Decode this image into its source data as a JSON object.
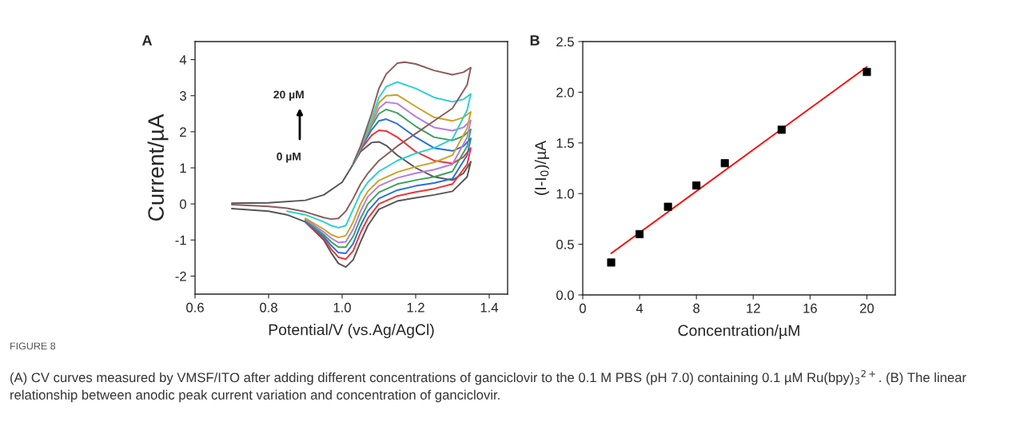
{
  "chart_data": [
    {
      "type": "line",
      "xlabel": "Potential/V (vs.Ag/AgCl)",
      "ylabel": "Current/µA",
      "xlim": [
        0.6,
        1.45
      ],
      "ylim": [
        -2.5,
        4.5
      ],
      "xticks": [
        {
          "value": 0.6,
          "label": "0.6"
        },
        {
          "value": 0.8,
          "label": "0.8"
        },
        {
          "value": 1.0,
          "label": "1.0"
        },
        {
          "value": 1.2,
          "label": "1.2"
        },
        {
          "value": 1.4,
          "label": "1.4"
        }
      ],
      "yticks": [
        {
          "value": -2,
          "label": "-2"
        },
        {
          "value": -1,
          "label": "-1"
        },
        0,
        1,
        2,
        3,
        4
      ],
      "grid": false,
      "marker": "none",
      "line_style": "solid",
      "annotations": [
        "A",
        "20 µM",
        "0 µM",
        "FIGURE 8",
        "(A) CV curves measured by VMSF/ITO after adding different concentrations of ganciclovir to the 0.1 M PBS (pH 7.0) containing 0.1 µM Ru(bpy)$_{3}$$^{2+}$. (B) The linear relationship between anodic peak current variation and concentration of ganciclovir."
      ],
      "series": [
        {
          "color": "#555555",
          "x": [
            0.7,
            0.8,
            0.9,
            0.95,
            1.0,
            1.03,
            1.05,
            1.08,
            1.1,
            1.12,
            1.15,
            1.2,
            1.25,
            1.3,
            1.33,
            1.35,
            1.34,
            1.3,
            1.25,
            1.2,
            1.15,
            1.1,
            1.07,
            1.05,
            1.03,
            1.01,
            0.99,
            0.97,
            0.95,
            0.9,
            0.85,
            0.8,
            0.7
          ],
          "values": [
            0.02,
            0.03,
            0.1,
            0.25,
            0.6,
            1.1,
            1.45,
            1.7,
            1.72,
            1.62,
            1.35,
            1.0,
            0.75,
            0.66,
            0.85,
            1.17,
            0.75,
            0.35,
            0.25,
            0.17,
            0.08,
            -0.15,
            -0.6,
            -1.05,
            -1.55,
            -1.75,
            -1.65,
            -1.35,
            -1.0,
            -0.5,
            -0.3,
            -0.2,
            -0.13
          ]
        },
        {
          "color": "#ee3333",
          "x": [
            1.03,
            1.05,
            1.08,
            1.1,
            1.12,
            1.15,
            1.2,
            1.25,
            1.3,
            1.33,
            1.35,
            1.34,
            1.3,
            1.25,
            1.2,
            1.15,
            1.1,
            1.07,
            1.05,
            1.03,
            1.01,
            0.99,
            0.97,
            0.95,
            0.9
          ],
          "values": [
            1.1,
            1.5,
            1.9,
            2.04,
            2.02,
            1.85,
            1.45,
            1.2,
            1.12,
            1.3,
            1.55,
            1.1,
            0.55,
            0.42,
            0.33,
            0.22,
            0.0,
            -0.4,
            -0.8,
            -1.3,
            -1.53,
            -1.48,
            -1.25,
            -0.95,
            -0.5
          ]
        },
        {
          "color": "#2a6fdb",
          "x": [
            1.03,
            1.05,
            1.08,
            1.1,
            1.12,
            1.15,
            1.2,
            1.25,
            1.3,
            1.33,
            1.35,
            1.34,
            1.3,
            1.25,
            1.2,
            1.15,
            1.1,
            1.07,
            1.05,
            1.03,
            1.01,
            0.99,
            0.97,
            0.95,
            0.9
          ],
          "values": [
            1.1,
            1.52,
            2.05,
            2.3,
            2.35,
            2.22,
            1.85,
            1.55,
            1.47,
            1.6,
            1.82,
            1.35,
            0.7,
            0.58,
            0.5,
            0.38,
            0.15,
            -0.2,
            -0.6,
            -1.1,
            -1.37,
            -1.35,
            -1.15,
            -0.9,
            -0.48
          ]
        },
        {
          "color": "#3aa35a",
          "x": [
            1.03,
            1.05,
            1.08,
            1.1,
            1.12,
            1.15,
            1.2,
            1.25,
            1.3,
            1.33,
            1.35,
            1.34,
            1.3,
            1.25,
            1.2,
            1.15,
            1.1,
            1.07,
            1.05,
            1.03,
            1.01,
            0.99,
            0.97,
            0.95,
            0.9
          ],
          "values": [
            1.1,
            1.54,
            2.15,
            2.5,
            2.62,
            2.52,
            2.15,
            1.85,
            1.76,
            1.88,
            2.07,
            1.6,
            0.9,
            0.75,
            0.66,
            0.55,
            0.32,
            0.0,
            -0.4,
            -0.9,
            -1.2,
            -1.2,
            -1.05,
            -0.85,
            -0.45
          ]
        },
        {
          "color": "#b57be0",
          "x": [
            1.03,
            1.05,
            1.08,
            1.1,
            1.12,
            1.15,
            1.2,
            1.25,
            1.3,
            1.33,
            1.35,
            1.34,
            1.3,
            1.25,
            1.2,
            1.15,
            1.1,
            1.07,
            1.05,
            1.03,
            1.01,
            0.99,
            0.97,
            0.95,
            0.9
          ],
          "values": [
            1.1,
            1.55,
            2.2,
            2.65,
            2.82,
            2.78,
            2.42,
            2.12,
            2.03,
            2.12,
            2.32,
            1.85,
            1.1,
            0.95,
            0.85,
            0.72,
            0.5,
            0.2,
            -0.2,
            -0.7,
            -1.05,
            -1.07,
            -0.95,
            -0.78,
            -0.42
          ]
        },
        {
          "color": "#c9a227",
          "x": [
            1.03,
            1.05,
            1.08,
            1.1,
            1.12,
            1.15,
            1.2,
            1.25,
            1.3,
            1.33,
            1.35,
            1.34,
            1.3,
            1.25,
            1.2,
            1.15,
            1.1,
            1.07,
            1.05,
            1.03,
            1.01,
            0.99,
            0.97,
            0.95,
            0.9
          ],
          "values": [
            1.1,
            1.56,
            2.25,
            2.8,
            3.0,
            3.02,
            2.7,
            2.4,
            2.3,
            2.4,
            2.55,
            2.1,
            1.35,
            1.15,
            1.03,
            0.88,
            0.65,
            0.35,
            0.0,
            -0.5,
            -0.88,
            -0.93,
            -0.85,
            -0.7,
            -0.4
          ]
        },
        {
          "color": "#2bcfd0",
          "x": [
            1.03,
            1.05,
            1.08,
            1.1,
            1.12,
            1.15,
            1.2,
            1.25,
            1.3,
            1.33,
            1.35,
            1.34,
            1.3,
            1.25,
            1.2,
            1.15,
            1.1,
            1.07,
            1.05,
            1.03,
            1.01,
            0.99,
            0.97,
            0.95,
            0.9,
            0.85
          ],
          "values": [
            1.1,
            1.57,
            2.35,
            2.95,
            3.25,
            3.38,
            3.2,
            2.95,
            2.83,
            2.9,
            3.05,
            2.6,
            1.8,
            1.55,
            1.4,
            1.2,
            0.9,
            0.6,
            0.3,
            -0.15,
            -0.6,
            -0.66,
            -0.6,
            -0.5,
            -0.3,
            -0.2
          ]
        },
        {
          "color": "#8b5a5a",
          "x": [
            1.03,
            1.05,
            1.08,
            1.1,
            1.12,
            1.15,
            1.17,
            1.2,
            1.25,
            1.3,
            1.33,
            1.35,
            1.34,
            1.3,
            1.25,
            1.2,
            1.15,
            1.1,
            1.07,
            1.05,
            1.03,
            1.01,
            0.99,
            0.97,
            0.95,
            0.9,
            0.85,
            0.8,
            0.7
          ],
          "values": [
            1.12,
            1.6,
            2.5,
            3.2,
            3.6,
            3.9,
            3.93,
            3.88,
            3.7,
            3.58,
            3.65,
            3.78,
            3.3,
            2.65,
            2.3,
            1.95,
            1.6,
            1.2,
            0.85,
            0.55,
            0.15,
            -0.2,
            -0.4,
            -0.42,
            -0.38,
            -0.22,
            -0.12,
            -0.07,
            -0.02
          ]
        }
      ]
    },
    {
      "type": "scatter",
      "xlabel": "Concentration/µM",
      "ylabel": "(I-I$_{0}$)/µA",
      "xlim": [
        0,
        22
      ],
      "ylim": [
        0,
        2.5
      ],
      "xticks": [
        0,
        4,
        8,
        12,
        16,
        20
      ],
      "yticks": [
        {
          "value": 0.0,
          "label": "0.0"
        },
        {
          "value": 0.5,
          "label": "0.5"
        },
        {
          "value": 1.0,
          "label": "1.0"
        },
        {
          "value": 1.5,
          "label": "1.5"
        },
        {
          "value": 2.0,
          "label": "2.0"
        },
        {
          "value": 2.5,
          "label": "2.5"
        }
      ],
      "grid": false,
      "annotations": [
        "B"
      ],
      "series": [
        {
          "type": "scatter",
          "marker": "square",
          "color": "#000000",
          "x": [
            2,
            4,
            6,
            8,
            10,
            14,
            20
          ],
          "values": [
            0.32,
            0.6,
            0.87,
            1.08,
            1.3,
            1.63,
            2.2
          ],
          "errors": [
            null,
            null,
            null,
            null,
            null,
            0.03,
            null
          ]
        },
        {
          "type": "line",
          "color": "#ff0000",
          "x": [
            2,
            20
          ],
          "values": [
            0.41,
            2.25
          ]
        }
      ]
    }
  ]
}
